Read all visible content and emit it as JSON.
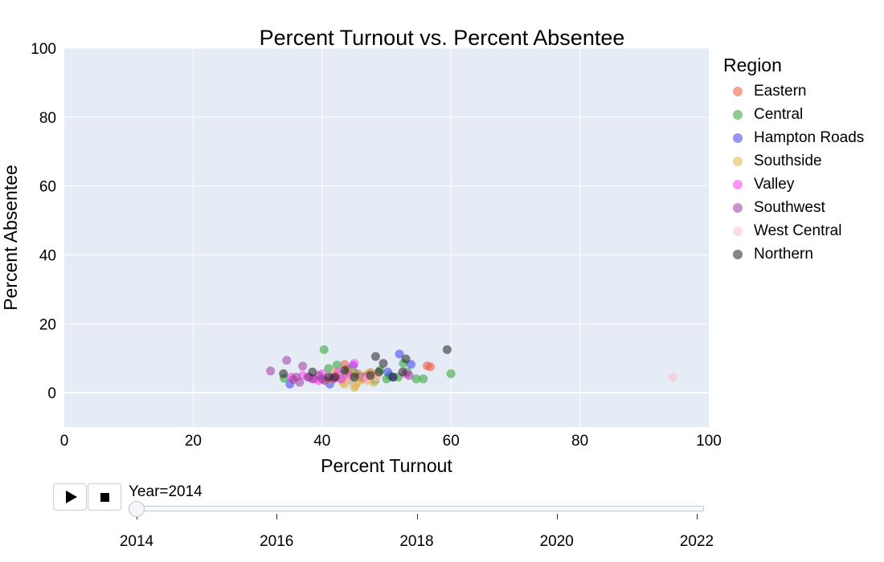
{
  "chart_data": {
    "type": "scatter",
    "title": "Percent Turnout vs. Percent Absentee",
    "xlabel": "Percent Turnout",
    "ylabel": "Percent Absentee",
    "xlim": [
      0,
      100
    ],
    "ylim": [
      -10,
      100
    ],
    "x_ticks": [
      "0",
      "20",
      "40",
      "60",
      "80",
      "100"
    ],
    "y_ticks": [
      "0",
      "20",
      "40",
      "60",
      "80",
      "100"
    ],
    "grid": true,
    "legend_title": "Region",
    "legend_position": "right",
    "series": [
      {
        "name": "Eastern",
        "color": "#ef553b",
        "x": [
          43.5,
          44.0,
          45.5,
          56.3,
          56.8,
          42.0,
          46.2,
          47.5
        ],
        "y": [
          8.2,
          6.8,
          5.5,
          7.8,
          7.5,
          4.5,
          4.0,
          5.8
        ]
      },
      {
        "name": "Central",
        "color": "#2ca02c",
        "x": [
          40.3,
          34.1,
          41.0,
          42.3,
          43.8,
          45.0,
          46.5,
          48.2,
          49.0,
          50.5,
          51.8,
          52.6,
          53.2,
          54.6,
          55.7,
          60.0,
          44.5,
          47.0,
          50.0
        ],
        "y": [
          12.5,
          4.2,
          7.0,
          8.0,
          6.0,
          5.5,
          4.5,
          3.5,
          6.5,
          5.0,
          4.5,
          8.5,
          6.0,
          4.0,
          4.0,
          5.5,
          3.5,
          5.0,
          4.0
        ]
      },
      {
        "name": "Hampton Roads",
        "color": "#3a3ef0",
        "x": [
          35.0,
          41.2,
          43.0,
          44.8,
          52.0,
          53.8,
          50.2,
          51.0,
          46.0
        ],
        "y": [
          2.5,
          2.5,
          4.0,
          7.8,
          11.2,
          8.2,
          6.0,
          4.5,
          4.5
        ]
      },
      {
        "name": "Southside",
        "color": "#e1b54a",
        "x": [
          40.5,
          41.5,
          42.5,
          43.2,
          44.0,
          44.6,
          45.0,
          45.5,
          46.0,
          46.5,
          47.0,
          47.5,
          48.0,
          48.5,
          42.0,
          43.5,
          45.2,
          47.2
        ],
        "y": [
          3.5,
          4.0,
          5.0,
          3.0,
          4.5,
          6.0,
          1.5,
          3.0,
          4.0,
          5.0,
          3.5,
          4.5,
          3.0,
          5.0,
          6.0,
          2.5,
          2.0,
          5.5
        ]
      },
      {
        "name": "Valley",
        "color": "#ff3cf0",
        "x": [
          35.2,
          37.0,
          38.8,
          40.0,
          41.5,
          43.0,
          44.2,
          45.0,
          46.8,
          53.0,
          39.5,
          42.5
        ],
        "y": [
          4.5,
          5.0,
          4.0,
          5.5,
          4.5,
          4.0,
          5.0,
          8.5,
          4.5,
          5.5,
          3.5,
          6.0
        ]
      },
      {
        "name": "Southwest",
        "color": "#9f3aa0",
        "x": [
          32.0,
          34.5,
          35.5,
          36.5,
          37.0,
          37.8,
          38.5,
          39.5,
          40.5,
          41.8,
          53.5,
          36.0,
          38.0,
          40.0
        ],
        "y": [
          6.3,
          9.4,
          3.8,
          3.0,
          7.7,
          4.5,
          4.0,
          5.0,
          3.5,
          4.0,
          5.0,
          4.5,
          4.5,
          4.0
        ]
      },
      {
        "name": "West Central",
        "color": "#ffc0cb",
        "x": [
          94.4,
          44.5,
          47.0,
          48.5
        ],
        "y": [
          4.5,
          3.5,
          4.0,
          4.5
        ]
      },
      {
        "name": "Northern",
        "color": "#202020",
        "x": [
          59.4,
          48.3,
          49.5,
          48.8,
          42.0,
          43.5,
          45.0,
          47.5,
          51.0,
          52.5,
          53.0,
          34.0,
          38.5,
          41.0
        ],
        "y": [
          12.5,
          10.5,
          8.5,
          6.0,
          4.5,
          6.5,
          4.5,
          5.0,
          4.5,
          6.0,
          9.8,
          5.5,
          6.0,
          4.5
        ]
      }
    ]
  },
  "slider": {
    "current_label": "Year=2014",
    "current_value": 2014,
    "range": [
      2014,
      2022
    ],
    "tick_labels": [
      "2014",
      "2016",
      "2018",
      "2020",
      "2022"
    ],
    "tick_values": [
      2014,
      2016,
      2018,
      2020,
      2022
    ]
  },
  "controls": {
    "play_icon": "play-icon",
    "stop_icon": "stop-icon"
  }
}
